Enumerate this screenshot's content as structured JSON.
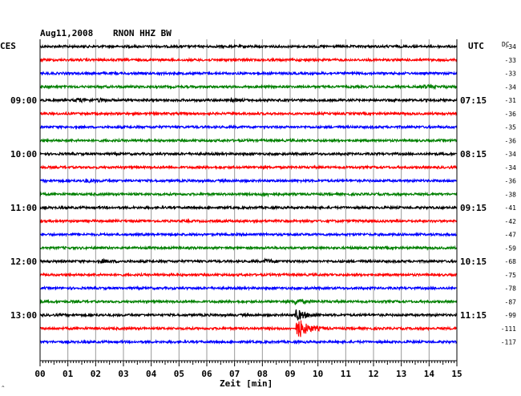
{
  "header": {
    "date": "Aug11,2008",
    "station": "RNON HHZ BW",
    "left_tz": "CES",
    "right_tz": "UTC",
    "dc_label": "DC"
  },
  "chart_data": {
    "type": "line",
    "xlabel": "Zeit [min]",
    "xlim": [
      0,
      15
    ],
    "x_ticks": [
      "00",
      "01",
      "02",
      "03",
      "04",
      "05",
      "06",
      "07",
      "08",
      "09",
      "10",
      "11",
      "12",
      "13",
      "14",
      "15"
    ],
    "trace_colors": [
      "#000000",
      "#ff0000",
      "#0000ff",
      "#008000"
    ],
    "left_hour_labels": [
      "09:00",
      "10:00",
      "11:00",
      "12:00",
      "13:00"
    ],
    "right_hour_labels": [
      "07:15",
      "08:15",
      "09:15",
      "10:15",
      "11:15"
    ],
    "dc_offsets": [
      -34,
      -33,
      -33,
      -34,
      -31,
      -36,
      -35,
      -36,
      -34,
      -34,
      -36,
      -38,
      -41,
      -42,
      -47,
      -59,
      -68,
      -75,
      -78,
      -87,
      -99,
      -111,
      -117
    ],
    "events": [
      {
        "row": 4,
        "minute": 1.3,
        "amp": 2.2
      },
      {
        "row": 4,
        "minute": 2.1,
        "amp": 1.6
      },
      {
        "row": 4,
        "minute": 6.9,
        "amp": 1.4
      },
      {
        "row": 3,
        "minute": 13.8,
        "amp": 1.6
      },
      {
        "row": 10,
        "minute": 1.6,
        "amp": 1.8
      },
      {
        "row": 11,
        "minute": 8.0,
        "amp": 1.6
      },
      {
        "row": 16,
        "minute": 2.2,
        "amp": 1.6
      },
      {
        "row": 16,
        "minute": 8.1,
        "amp": 2.0
      },
      {
        "row": 21,
        "minute": 9.25,
        "amp": 14.0
      },
      {
        "row": 20,
        "minute": 9.2,
        "amp": 7.0
      },
      {
        "row": 19,
        "minute": 9.15,
        "amp": 3.0
      }
    ]
  }
}
